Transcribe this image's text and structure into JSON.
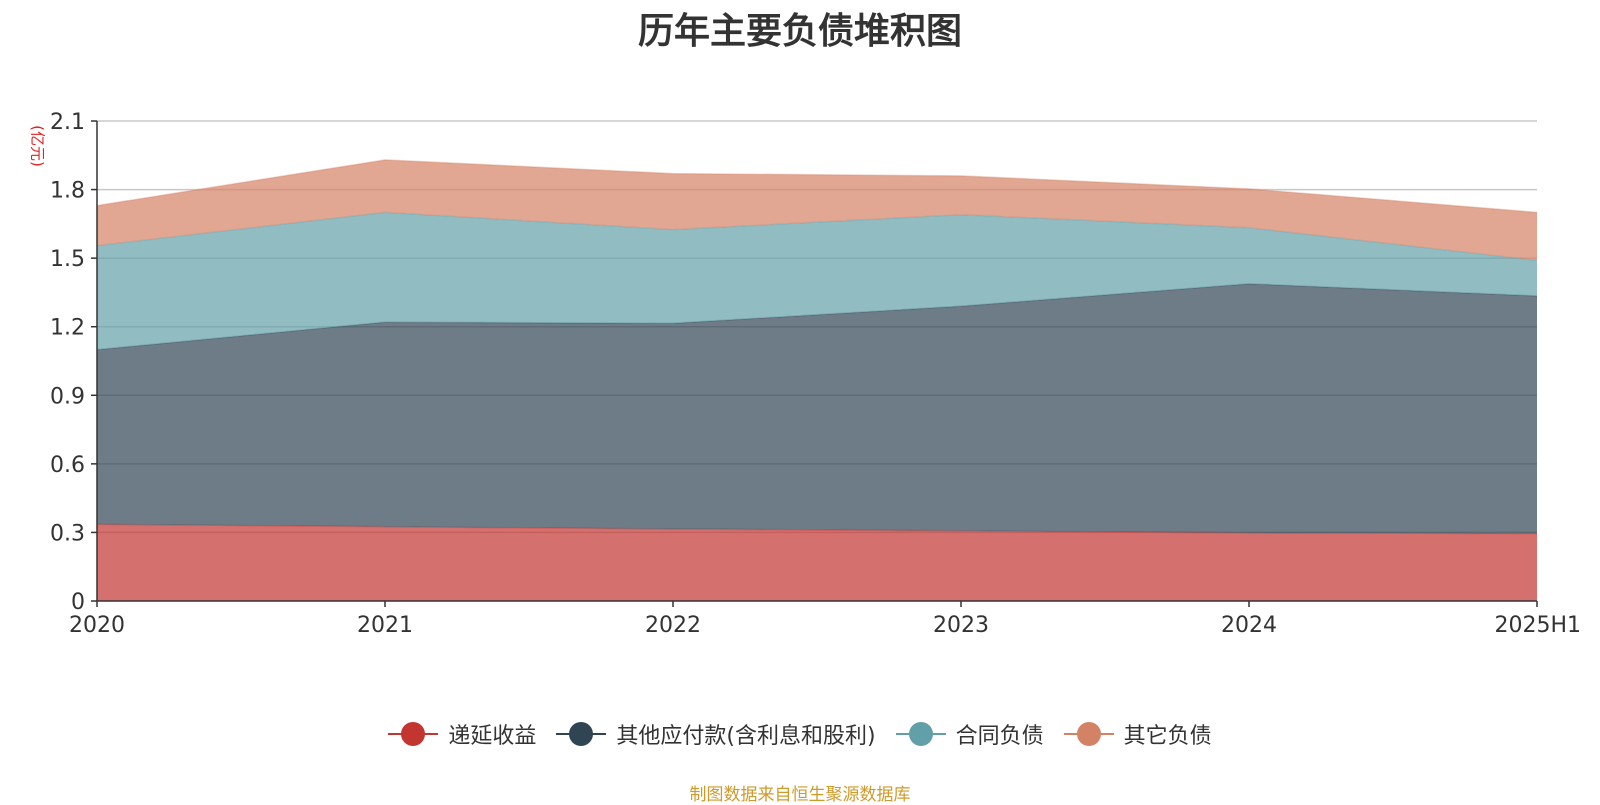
{
  "chart_data": {
    "type": "area",
    "stacked": true,
    "title": "历年主要负债堆积图",
    "unit_label": "(亿元)",
    "categories": [
      "2020",
      "2021",
      "2022",
      "2023",
      "2024",
      "2025H1"
    ],
    "ylim": [
      0,
      2.1
    ],
    "yticks": [
      "0",
      "0.3",
      "0.6",
      "0.9",
      "1.2",
      "1.5",
      "1.8",
      "2.1"
    ],
    "grid": true,
    "legend_position": "bottom",
    "series": [
      {
        "name": "递延收益",
        "color": "#c23531",
        "values": [
          0.335,
          0.325,
          0.315,
          0.307,
          0.298,
          0.295
        ]
      },
      {
        "name": "其他应付款(含利息和股利)",
        "color": "#2f4554",
        "values": [
          0.765,
          0.895,
          0.9,
          0.983,
          1.09,
          1.04
        ]
      },
      {
        "name": "合同负债",
        "color": "#61a0a8",
        "values": [
          0.455,
          0.48,
          0.41,
          0.4,
          0.245,
          0.155
        ]
      },
      {
        "name": "其它负债",
        "color": "#d48265",
        "values": [
          0.175,
          0.23,
          0.245,
          0.17,
          0.17,
          0.21
        ]
      }
    ]
  },
  "source": "制图数据来自恒生聚源数据库"
}
